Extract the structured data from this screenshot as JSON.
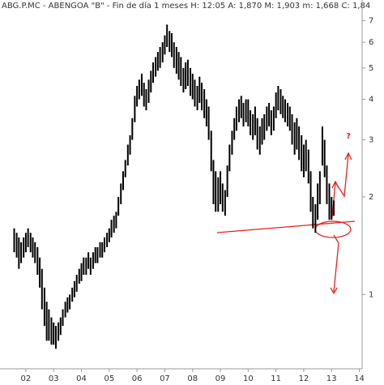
{
  "chart_data": {
    "type": "range_bar",
    "title": "ABG.P.MC - ABENGOA \"B\" - Fin de día 1 meses  H: 12:05  A: 1,870  M: 1,903  m: 1,668  C: 1,84",
    "annotation": "?",
    "log_scale": true,
    "color": "#000000",
    "ylim": [
      0.59,
      8.1
    ],
    "yticks": [
      1,
      2,
      3,
      4,
      5,
      6,
      7
    ],
    "xlim": [
      2001.07,
      2014.1
    ],
    "xticks": [
      {
        "value": 2002,
        "label": "02"
      },
      {
        "value": 2003,
        "label": "03"
      },
      {
        "value": 2004,
        "label": "04"
      },
      {
        "value": 2005,
        "label": "05"
      },
      {
        "value": 2006,
        "label": "06"
      },
      {
        "value": 2007,
        "label": "07"
      },
      {
        "value": 2008,
        "label": "08"
      },
      {
        "value": 2009,
        "label": "09"
      },
      {
        "value": 2010,
        "label": "10"
      },
      {
        "value": 2011,
        "label": "11"
      },
      {
        "value": 2012,
        "label": "12"
      },
      {
        "value": 2013,
        "label": "13"
      },
      {
        "value": 2014,
        "label": "14"
      }
    ],
    "x": [
      2001.58,
      2001.67,
      2001.75,
      2001.83,
      2001.92,
      2002.0,
      2002.08,
      2002.17,
      2002.25,
      2002.33,
      2002.42,
      2002.5,
      2002.58,
      2002.67,
      2002.75,
      2002.83,
      2002.92,
      2003.0,
      2003.08,
      2003.17,
      2003.25,
      2003.33,
      2003.42,
      2003.5,
      2003.58,
      2003.67,
      2003.75,
      2003.83,
      2003.92,
      2004.0,
      2004.08,
      2004.17,
      2004.25,
      2004.33,
      2004.42,
      2004.5,
      2004.58,
      2004.67,
      2004.75,
      2004.83,
      2004.92,
      2005.0,
      2005.08,
      2005.17,
      2005.25,
      2005.33,
      2005.42,
      2005.5,
      2005.58,
      2005.67,
      2005.75,
      2005.83,
      2005.92,
      2006.0,
      2006.08,
      2006.17,
      2006.25,
      2006.33,
      2006.42,
      2006.5,
      2006.58,
      2006.67,
      2006.75,
      2006.83,
      2006.92,
      2007.0,
      2007.08,
      2007.17,
      2007.25,
      2007.33,
      2007.42,
      2007.5,
      2007.58,
      2007.67,
      2007.75,
      2007.83,
      2007.92,
      2008.0,
      2008.08,
      2008.17,
      2008.25,
      2008.33,
      2008.42,
      2008.5,
      2008.58,
      2008.67,
      2008.75,
      2008.83,
      2008.92,
      2009.0,
      2009.08,
      2009.17,
      2009.25,
      2009.33,
      2009.42,
      2009.5,
      2009.58,
      2009.67,
      2009.75,
      2009.83,
      2009.92,
      2010.0,
      2010.08,
      2010.17,
      2010.25,
      2010.33,
      2010.42,
      2010.5,
      2010.58,
      2010.67,
      2010.75,
      2010.83,
      2010.92,
      2011.0,
      2011.08,
      2011.17,
      2011.25,
      2011.33,
      2011.42,
      2011.5,
      2011.58,
      2011.67,
      2011.75,
      2011.83,
      2011.92,
      2012.0,
      2012.08,
      2012.17,
      2012.25,
      2012.33,
      2012.42,
      2012.5,
      2012.58,
      2012.67,
      2012.75,
      2012.83,
      2012.92,
      2013.0,
      2013.08
    ],
    "high": [
      1.6,
      1.55,
      1.5,
      1.45,
      1.5,
      1.55,
      1.6,
      1.55,
      1.5,
      1.45,
      1.4,
      1.3,
      1.2,
      1.05,
      0.95,
      0.9,
      0.85,
      0.82,
      0.8,
      0.82,
      0.85,
      0.9,
      0.95,
      0.98,
      1.0,
      1.05,
      1.1,
      1.15,
      1.2,
      1.25,
      1.3,
      1.3,
      1.35,
      1.3,
      1.35,
      1.4,
      1.4,
      1.45,
      1.45,
      1.5,
      1.55,
      1.6,
      1.7,
      1.75,
      1.8,
      2.0,
      2.2,
      2.4,
      2.6,
      2.9,
      3.1,
      3.5,
      4.1,
      4.4,
      4.6,
      4.8,
      4.5,
      4.3,
      4.6,
      4.9,
      5.2,
      5.4,
      5.6,
      5.8,
      6.0,
      6.3,
      6.8,
      6.5,
      6.4,
      6.0,
      5.8,
      5.6,
      5.4,
      5.0,
      5.2,
      5.3,
      5.0,
      4.8,
      4.6,
      4.4,
      4.7,
      4.5,
      4.3,
      4.0,
      3.8,
      3.2,
      2.6,
      2.4,
      2.3,
      2.4,
      2.2,
      2.1,
      2.5,
      2.9,
      3.2,
      3.5,
      3.8,
      4.0,
      4.1,
      3.9,
      4.0,
      4.0,
      3.7,
      3.6,
      3.8,
      3.5,
      3.3,
      3.5,
      3.6,
      3.8,
      3.9,
      3.7,
      3.8,
      4.2,
      4.4,
      4.3,
      4.1,
      4.0,
      3.9,
      3.8,
      3.6,
      3.4,
      3.5,
      3.3,
      3.1,
      2.9,
      3.0,
      2.8,
      2.4,
      2.0,
      1.9,
      2.2,
      2.4,
      3.3,
      3.0,
      2.5,
      2.2,
      2.0,
      1.95
    ],
    "low": [
      1.35,
      1.3,
      1.2,
      1.25,
      1.3,
      1.35,
      1.4,
      1.35,
      1.3,
      1.25,
      1.15,
      1.05,
      0.9,
      0.8,
      0.72,
      0.72,
      0.7,
      0.7,
      0.68,
      0.72,
      0.75,
      0.8,
      0.85,
      0.88,
      0.9,
      0.95,
      0.98,
      1.02,
      1.08,
      1.1,
      1.15,
      1.15,
      1.2,
      1.15,
      1.2,
      1.25,
      1.25,
      1.3,
      1.3,
      1.35,
      1.4,
      1.45,
      1.5,
      1.55,
      1.6,
      1.75,
      1.9,
      2.1,
      2.3,
      2.5,
      2.7,
      3.0,
      3.4,
      3.8,
      4.0,
      4.1,
      3.8,
      3.7,
      3.9,
      4.2,
      4.5,
      4.7,
      4.9,
      5.0,
      5.2,
      5.5,
      5.8,
      5.6,
      5.4,
      5.0,
      4.8,
      4.6,
      4.4,
      4.2,
      4.3,
      4.4,
      4.1,
      4.0,
      3.8,
      3.7,
      3.9,
      3.7,
      3.5,
      3.3,
      3.0,
      2.4,
      1.9,
      1.8,
      1.8,
      1.9,
      1.8,
      1.75,
      2.0,
      2.4,
      2.7,
      3.0,
      3.2,
      3.4,
      3.5,
      3.3,
      3.4,
      3.3,
      3.1,
      3.0,
      3.1,
      2.8,
      2.7,
      2.9,
      3.0,
      3.2,
      3.3,
      3.1,
      3.2,
      3.5,
      3.7,
      3.6,
      3.5,
      3.4,
      3.3,
      3.2,
      2.9,
      2.7,
      2.8,
      2.6,
      2.4,
      2.3,
      2.4,
      2.2,
      1.8,
      1.6,
      1.55,
      1.7,
      1.9,
      2.5,
      2.3,
      1.9,
      1.7,
      1.7,
      1.75
    ]
  }
}
